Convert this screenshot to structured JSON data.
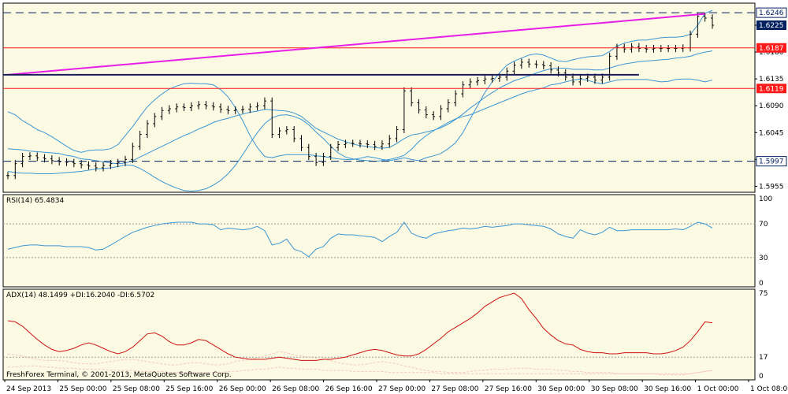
{
  "chart_data": {
    "type": "line",
    "colors": {
      "background": "#fcfae2",
      "frame": "#ffffff",
      "bollinger": "#3a96d6",
      "bars": "#000000",
      "red_line": "#ff1a1a",
      "magenta_line": "#e81ee8",
      "navy_line": "#1a1a5c",
      "rsi_line": "#3a96d6",
      "adx_line": "#cc1111",
      "di_plus": "#f5c5c5",
      "di_minus": "#f5c5c5",
      "tag_blue": "#002060"
    },
    "x_tick_labels": [
      "24 Sep 2013",
      "25 Sep 00:00",
      "25 Sep 08:00",
      "25 Sep 16:00",
      "26 Sep 00:00",
      "26 Sep 08:00",
      "26 Sep 16:00",
      "27 Sep 00:00",
      "27 Sep 08:00",
      "27 Sep 16:00",
      "30 Sep 00:00",
      "30 Sep 08:00",
      "30 Sep 16:00",
      "1 Oct 00:00",
      "1 Oct 08:00"
    ],
    "main": {
      "ylim": [
        1.5945,
        1.6262
      ],
      "y_ticks": [
        "1.6225",
        "1.6180",
        "1.6135",
        "1.6090",
        "1.6045",
        "1.6000",
        "1.5955"
      ],
      "close": [
        1.5973,
        1.5993,
        1.6005,
        1.6006,
        1.6003,
        1.6001,
        1.5998,
        1.5996,
        1.5995,
        1.5993,
        1.5991,
        1.5989,
        1.5986,
        1.599,
        1.5993,
        1.5995,
        1.6,
        1.6022,
        1.6042,
        1.606,
        1.6072,
        1.6082,
        1.6085,
        1.6088,
        1.6087,
        1.609,
        1.6092,
        1.609,
        1.6088,
        1.6084,
        1.6082,
        1.6083,
        1.6084,
        1.6088,
        1.609,
        1.6098,
        1.6042,
        1.6048,
        1.605,
        1.6035,
        1.602,
        1.6005,
        1.5995,
        1.6005,
        1.602,
        1.6025,
        1.6027,
        1.6027,
        1.6026,
        1.6025,
        1.6022,
        1.6026,
        1.6035,
        1.605,
        1.6115,
        1.6095,
        1.6083,
        1.6075,
        1.6072,
        1.6085,
        1.6095,
        1.611,
        1.6125,
        1.613,
        1.6132,
        1.6135,
        1.6136,
        1.6138,
        1.6148,
        1.6158,
        1.6163,
        1.616,
        1.6159,
        1.6157,
        1.615,
        1.6145,
        1.6138,
        1.613,
        1.6136,
        1.6138,
        1.6133,
        1.6138,
        1.6173,
        1.6188,
        1.6185,
        1.6189,
        1.6186,
        1.6185,
        1.6186,
        1.6186,
        1.6186,
        1.6186,
        1.6187,
        1.621,
        1.624,
        1.6237,
        1.6225
      ],
      "bb_upper": [
        1.608,
        1.6075,
        1.6065,
        1.6058,
        1.605,
        1.6045,
        1.6038,
        1.603,
        1.6022,
        1.6015,
        1.6012,
        1.6015,
        1.6016,
        1.6016,
        1.6018,
        1.6025,
        1.604,
        1.6055,
        1.6072,
        1.6088,
        1.61,
        1.611,
        1.6118,
        1.6123,
        1.6127,
        1.6128,
        1.6127,
        1.6127,
        1.6125,
        1.6117,
        1.6105,
        1.6087,
        1.6065,
        1.604,
        1.602,
        1.6005,
        1.6003,
        1.6006,
        1.6008,
        1.6008,
        1.6008,
        1.6008,
        1.6006,
        1.6005,
        1.6003,
        1.6001,
        1.6,
        1.6,
        1.6002,
        1.6005,
        1.6003,
        1.6,
        1.5998,
        1.6,
        1.6003,
        1.6,
        1.5998,
        1.6003,
        1.6006,
        1.601,
        1.6018,
        1.6028,
        1.6045,
        1.6068,
        1.609,
        1.6112,
        1.613,
        1.6145,
        1.6158,
        1.6165,
        1.617,
        1.6175,
        1.6177,
        1.6175,
        1.617,
        1.6165,
        1.6164,
        1.6167,
        1.617,
        1.6172,
        1.6173,
        1.6174,
        1.6181,
        1.619,
        1.6195,
        1.6198,
        1.62,
        1.62,
        1.6202,
        1.6204,
        1.6205,
        1.6205,
        1.6206,
        1.621,
        1.6225,
        1.6245,
        1.625
      ],
      "bb_middle": [
        1.6018,
        1.6017,
        1.6016,
        1.6014,
        1.6013,
        1.6012,
        1.6011,
        1.601,
        1.6007,
        1.6005,
        1.6001,
        1.6,
        1.5998,
        1.5996,
        1.5994,
        1.5993,
        1.5994,
        1.5998,
        1.6004,
        1.601,
        1.6016,
        1.6022,
        1.6028,
        1.6034,
        1.604,
        1.6045,
        1.6051,
        1.6056,
        1.6062,
        1.6066,
        1.6069,
        1.6073,
        1.6076,
        1.6079,
        1.6081,
        1.6084,
        1.6083,
        1.6082,
        1.6081,
        1.6078,
        1.6072,
        1.6062,
        1.6052,
        1.6046,
        1.604,
        1.6034,
        1.603,
        1.6026,
        1.6023,
        1.6022,
        1.602,
        1.6019,
        1.602,
        1.6027,
        1.6035,
        1.6041,
        1.6043,
        1.6046,
        1.6049,
        1.6053,
        1.6059,
        1.6067,
        1.6076,
        1.6086,
        1.6095,
        1.6104,
        1.6112,
        1.612,
        1.6126,
        1.6132,
        1.6136,
        1.614,
        1.6145,
        1.6149,
        1.6152,
        1.6153,
        1.6153,
        1.6151,
        1.6151,
        1.6151,
        1.615,
        1.615,
        1.6153,
        1.6157,
        1.616,
        1.6162,
        1.6164,
        1.6165,
        1.6166,
        1.6167,
        1.6168,
        1.617,
        1.6171,
        1.6173,
        1.6177,
        1.618,
        1.6182
      ],
      "bb_lower": [
        1.598,
        1.5978,
        1.5977,
        1.5977,
        1.5976,
        1.5976,
        1.5976,
        1.5977,
        1.5978,
        1.5979,
        1.598,
        1.5982,
        1.5984,
        1.5985,
        1.5986,
        1.5988,
        1.5991,
        1.599,
        1.5985,
        1.5978,
        1.597,
        1.5963,
        1.5957,
        1.5952,
        1.5948,
        1.5947,
        1.5948,
        1.5951,
        1.5957,
        1.5965,
        1.5976,
        1.599,
        1.6008,
        1.6027,
        1.6045,
        1.606,
        1.607,
        1.6074,
        1.6075,
        1.6072,
        1.6067,
        1.6058,
        1.6046,
        1.6035,
        1.6022,
        1.6011,
        1.6004,
        1.6001,
        1.5999,
        1.5998,
        1.5997,
        1.5998,
        1.6,
        1.6003,
        1.6007,
        1.6017,
        1.603,
        1.604,
        1.6048,
        1.6055,
        1.6062,
        1.6068,
        1.6072,
        1.6075,
        1.608,
        1.6085,
        1.609,
        1.6095,
        1.61,
        1.6105,
        1.611,
        1.6114,
        1.6117,
        1.612,
        1.6125,
        1.6127,
        1.613,
        1.6133,
        1.6135,
        1.6133,
        1.6129,
        1.6127,
        1.613,
        1.6133,
        1.6134,
        1.6134,
        1.6134,
        1.6134,
        1.6132,
        1.613,
        1.6131,
        1.6134,
        1.6135,
        1.6135,
        1.6133,
        1.613,
        1.6133
      ],
      "resistance_lines": [
        {
          "price": 1.6187,
          "label": "1.6187"
        },
        {
          "price": 1.6119,
          "label": "1.6119"
        }
      ],
      "dashed_lines": [
        {
          "price": 1.6246,
          "label": "1.6246"
        },
        {
          "price": 1.5997,
          "label": "1.5997"
        }
      ],
      "trend_line": {
        "x": [
          0,
          95
        ],
        "y": [
          1.6142,
          1.6244
        ]
      },
      "horizontal_line": {
        "x": [
          0,
          86
        ],
        "y": [
          1.6142,
          1.6142
        ]
      },
      "current_price": {
        "value": 1.6225,
        "label": "1.6225"
      }
    },
    "rsi": {
      "label": "RSI(14) 65.4834",
      "ylim": [
        0,
        100
      ],
      "ticks": [
        "100",
        "70",
        "30",
        "0"
      ],
      "levels": [
        70,
        30
      ],
      "values": [
        40,
        42,
        44,
        45,
        45,
        44,
        44,
        44,
        43,
        43,
        43,
        42,
        39,
        40,
        45,
        50,
        55,
        60,
        63,
        66,
        68,
        70,
        71,
        72,
        72,
        72,
        70,
        70,
        69,
        63,
        65,
        64,
        63,
        64,
        67,
        62,
        45,
        47,
        52,
        40,
        37,
        31,
        40,
        43,
        53,
        58,
        57,
        57,
        56,
        55,
        54,
        49,
        55,
        60,
        72,
        59,
        55,
        53,
        58,
        60,
        62,
        63,
        65,
        64,
        65,
        67,
        66,
        67,
        68,
        70,
        70,
        69,
        68,
        67,
        64,
        58,
        55,
        53,
        63,
        59,
        57,
        60,
        66,
        62,
        62,
        63,
        63,
        63,
        63,
        63,
        63,
        64,
        63,
        67,
        72,
        70,
        65
      ]
    },
    "adx": {
      "label": "ADX(14) 48.1499 +DI:16.2040 -DI:6.5702",
      "ylim": [
        0,
        75
      ],
      "ticks": [
        "75",
        "17",
        "0"
      ],
      "levels": [
        17
      ],
      "values": [
        50,
        49,
        45,
        39,
        33,
        28,
        24,
        22,
        23,
        25,
        28,
        30,
        28,
        25,
        22,
        20,
        22,
        26,
        32,
        38,
        39,
        36,
        31,
        28,
        28,
        30,
        33,
        32,
        28,
        24,
        20,
        17,
        16,
        15,
        15,
        15,
        16,
        17,
        16,
        15,
        14,
        14,
        14,
        15,
        15,
        16,
        17,
        19,
        21,
        23,
        24,
        23,
        21,
        19,
        18,
        18,
        20,
        24,
        29,
        34,
        40,
        44,
        48,
        52,
        57,
        63,
        67,
        71,
        73,
        75,
        70,
        60,
        52,
        43,
        37,
        32,
        29,
        28,
        24,
        22,
        21,
        21,
        20,
        20,
        21,
        21,
        21,
        21,
        20,
        20,
        21,
        23,
        26,
        32,
        40,
        49,
        48
      ],
      "di_plus": [
        20,
        19,
        18,
        16,
        15,
        14,
        14,
        14,
        13,
        12,
        11,
        11,
        11,
        12,
        13,
        14,
        15,
        15,
        14,
        13,
        12,
        11,
        10,
        10,
        11,
        12,
        12,
        11,
        10,
        10,
        11,
        13,
        14,
        15,
        16,
        18,
        20,
        22,
        21,
        19,
        18,
        17,
        16,
        15,
        14,
        12,
        11,
        10,
        10,
        11,
        12,
        13,
        12,
        11,
        9,
        8,
        6,
        5,
        4,
        4,
        3,
        3,
        3,
        4,
        5,
        5,
        6,
        6,
        6,
        7,
        7,
        7,
        6,
        6,
        6,
        5,
        5,
        4,
        4,
        3,
        3,
        3,
        3,
        2,
        2,
        2,
        2,
        2,
        2,
        1,
        1,
        1,
        1,
        2,
        3,
        4,
        5
      ],
      "di_minus": [
        8,
        8,
        9,
        9,
        9,
        8,
        8,
        7,
        7,
        7,
        6,
        6,
        6,
        6,
        5,
        5,
        5,
        5,
        4,
        4,
        4,
        4,
        3,
        3,
        3,
        3,
        3,
        3,
        3,
        3,
        4,
        4,
        5,
        5,
        6,
        6,
        7,
        8,
        7,
        7,
        6,
        6,
        6,
        5,
        5,
        5,
        5,
        4,
        4,
        4,
        4,
        4,
        3,
        3,
        3,
        3,
        3,
        3,
        3,
        2,
        2,
        2,
        2,
        2,
        2,
        2,
        2,
        2,
        2,
        2,
        2,
        2,
        2,
        2,
        2,
        2,
        2,
        2,
        2,
        2,
        2,
        2,
        2,
        2,
        2,
        2,
        2,
        2,
        2,
        2,
        2,
        2,
        2,
        2,
        3,
        4,
        5
      ]
    },
    "copyright": "FreshForex Terminal, © 2001-2013, MetaQuotes Software Corp."
  }
}
